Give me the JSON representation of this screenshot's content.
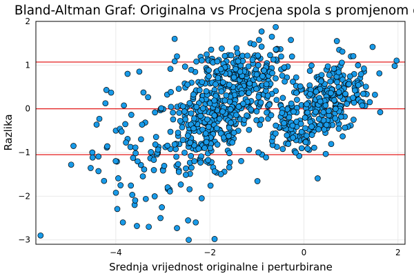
{
  "chart_data": {
    "type": "scatter",
    "title": "Bland-Altman Graf: Originalna vs Procjena spola s promjenom os",
    "xlabel": "Srednja vrijednost originalne i perturbirane",
    "ylabel": "Razlika",
    "xlim": [
      -5.7,
      2.15
    ],
    "ylim": [
      -3.1,
      2.0
    ],
    "xticks": [
      -4,
      -2,
      0,
      2
    ],
    "yticks": [
      -3,
      -2,
      -1,
      0,
      1,
      2
    ],
    "grid": true,
    "legend": "none",
    "marker_color": "#189ae8",
    "marker_edge_color": "#000000",
    "reference_lines": [
      {
        "y": 1.07,
        "color": "#e00000"
      },
      {
        "y": 0.0,
        "color": "#e00000"
      },
      {
        "y": -1.05,
        "color": "#e00000"
      }
    ],
    "clusters": [
      {
        "count": 260,
        "cx": -1.4,
        "cy": 0.45,
        "sx": 0.55,
        "sy": 0.42,
        "slope": 0.35
      },
      {
        "count": 200,
        "cx": -2.0,
        "cy": -0.55,
        "sx": 0.45,
        "sy": 0.55,
        "slope": 0.3
      },
      {
        "count": 240,
        "cx": 0.55,
        "cy": 0.2,
        "sx": 0.45,
        "sy": 0.42,
        "slope": 0.4
      },
      {
        "count": 90,
        "cx": -0.3,
        "cy": -0.35,
        "sx": 0.35,
        "sy": 0.35,
        "slope": 0.2
      },
      {
        "count": 80,
        "cx": -3.3,
        "cy": -0.9,
        "sx": 0.55,
        "sy": 0.75,
        "slope": 0.45
      },
      {
        "count": 60,
        "cx": -1.6,
        "cy": 0.95,
        "sx": 0.55,
        "sy": 0.25,
        "slope": 0.2
      }
    ],
    "points": [
      [
        -5.6,
        -2.9
      ],
      [
        -4.95,
        -1.28
      ],
      [
        -4.9,
        -0.85
      ],
      [
        -4.35,
        -0.23
      ],
      [
        -4.2,
        0.43
      ],
      [
        -4.1,
        0.37
      ],
      [
        -4.25,
        -1.65
      ],
      [
        -4.0,
        -0.5
      ],
      [
        -3.65,
        -1.97
      ],
      [
        -3.6,
        -2.2
      ],
      [
        -3.85,
        -2.6
      ],
      [
        -3.5,
        0.85
      ],
      [
        -3.3,
        -2.7
      ],
      [
        -3.05,
        -2.5
      ],
      [
        -2.7,
        -2.73
      ],
      [
        -2.45,
        -3.0
      ],
      [
        -2.3,
        -2.6
      ],
      [
        -1.9,
        -2.98
      ],
      [
        -2.75,
        1.6
      ],
      [
        -2.7,
        1.2
      ],
      [
        -0.6,
        1.87
      ],
      [
        -0.9,
        1.77
      ],
      [
        0.7,
        1.55
      ],
      [
        0.75,
        1.35
      ],
      [
        1.0,
        1.2
      ],
      [
        1.93,
        0.98
      ],
      [
        1.3,
        0.35
      ],
      [
        -0.45,
        -0.92
      ],
      [
        -0.1,
        -1.08
      ],
      [
        -3.9,
        -1.75
      ],
      [
        -3.75,
        0.8
      ],
      [
        -4.5,
        -1.0
      ]
    ]
  }
}
